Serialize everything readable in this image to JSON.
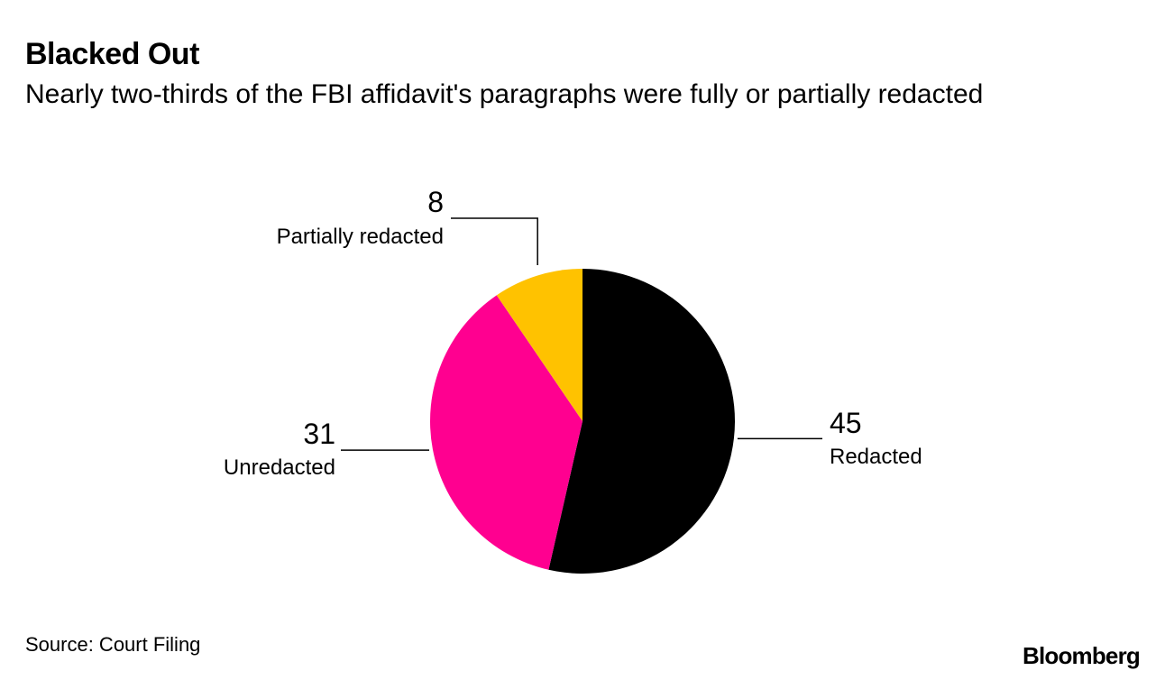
{
  "header": {
    "title": "Blacked Out",
    "subtitle": "Nearly two-thirds of the FBI affidavit's paragraphs were fully or partially redacted"
  },
  "footer": {
    "source": "Source: Court Filing",
    "brand": "Bloomberg"
  },
  "chart_data": {
    "type": "pie",
    "title": "Blacked Out",
    "subtitle": "Nearly two-thirds of the FBI affidavit's paragraphs were fully or partially redacted",
    "start_angle_deg": 0,
    "direction": "clockwise",
    "slices": [
      {
        "label": "Redacted",
        "value": 45,
        "color": "#000000"
      },
      {
        "label": "Unredacted",
        "value": 31,
        "color": "#ff0090"
      },
      {
        "label": "Partially redacted",
        "value": 8,
        "color": "#ffc200"
      }
    ]
  }
}
